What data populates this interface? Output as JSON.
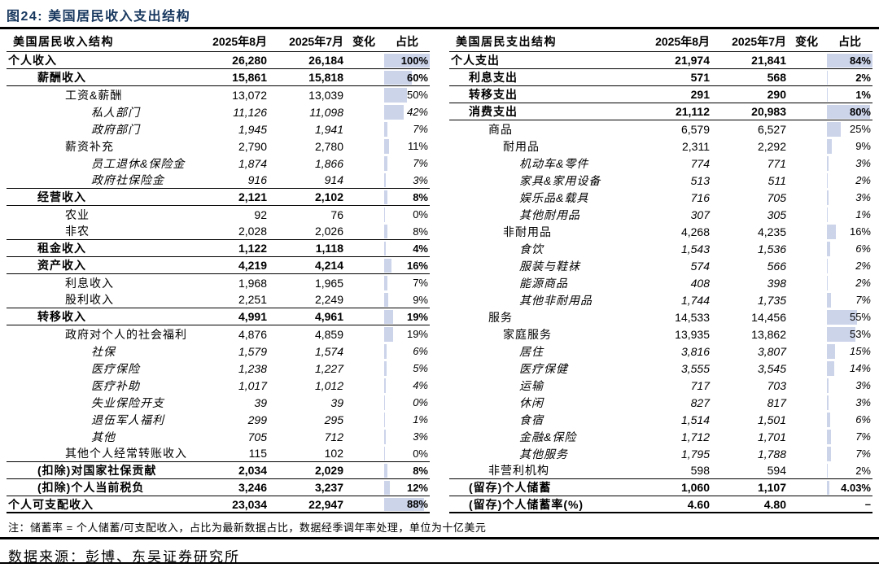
{
  "figure": {
    "title": "图24:  美国居民收入支出结构"
  },
  "note": "注：储蓄率 = 个人储蓄/可支配收入，占比为最新数据占比，数据经季调年率处理，单位为十亿美元",
  "source": "数据来源：彭博、东吴证券研究所",
  "colors": {
    "title_text": "#17375e",
    "share_bar_fill": "#ccd4ea",
    "rule": "#000000"
  },
  "tables": [
    {
      "name": "income-structure",
      "bar_max": 100,
      "header": {
        "label": "美国居民收入结构",
        "col_aug": "2025年8月",
        "col_jul": "2025年7月",
        "col_change": "变化",
        "col_share": "占比"
      },
      "rows": [
        {
          "label": "个人收入",
          "v1": "26,280",
          "v2": "26,184",
          "pct": "100%",
          "bar": 100,
          "ind": 0,
          "style": "b",
          "bb": 1
        },
        {
          "label": "薪酬收入",
          "v1": "15,861",
          "v2": "15,818",
          "pct": "60%",
          "bar": 60,
          "ind": 1,
          "style": "b",
          "bb": 1
        },
        {
          "label": "工资&薪酬",
          "v1": "13,072",
          "v2": "13,039",
          "pct": "50%",
          "bar": 50,
          "ind": 2,
          "style": "r",
          "bb": 0
        },
        {
          "label": "私人部门",
          "v1": "11,126",
          "v2": "11,098",
          "pct": "42%",
          "bar": 42,
          "ind": 3,
          "style": "i",
          "bb": 0
        },
        {
          "label": "政府部门",
          "v1": "1,945",
          "v2": "1,941",
          "pct": "7%",
          "bar": 7,
          "ind": 3,
          "style": "i",
          "bb": 0
        },
        {
          "label": "薪资补充",
          "v1": "2,790",
          "v2": "2,780",
          "pct": "11%",
          "bar": 11,
          "ind": 2,
          "style": "r",
          "bb": 0
        },
        {
          "label": "员工退休&保险金",
          "v1": "1,874",
          "v2": "1,866",
          "pct": "7%",
          "bar": 7,
          "ind": 3,
          "style": "i",
          "bb": 0
        },
        {
          "label": "政府社保险金",
          "v1": "916",
          "v2": "914",
          "pct": "3%",
          "bar": 3,
          "ind": 3,
          "style": "i",
          "bb": 1
        },
        {
          "label": "经营收入",
          "v1": "2,121",
          "v2": "2,102",
          "pct": "8%",
          "bar": 8,
          "ind": 1,
          "style": "b",
          "bb": 1
        },
        {
          "label": "农业",
          "v1": "92",
          "v2": "76",
          "pct": "0%",
          "bar": 0.5,
          "ind": 2,
          "style": "r",
          "bb": 0
        },
        {
          "label": "非农",
          "v1": "2,028",
          "v2": "2,026",
          "pct": "8%",
          "bar": 8,
          "ind": 2,
          "style": "r",
          "bb": 1
        },
        {
          "label": "租金收入",
          "v1": "1,122",
          "v2": "1,118",
          "pct": "4%",
          "bar": 4,
          "ind": 1,
          "style": "b",
          "bb": 1
        },
        {
          "label": "资产收入",
          "v1": "4,219",
          "v2": "4,214",
          "pct": "16%",
          "bar": 16,
          "ind": 1,
          "style": "b",
          "bb": 1
        },
        {
          "label": "利息收入",
          "v1": "1,968",
          "v2": "1,965",
          "pct": "7%",
          "bar": 7,
          "ind": 2,
          "style": "r",
          "bb": 0
        },
        {
          "label": "股利收入",
          "v1": "2,251",
          "v2": "2,249",
          "pct": "9%",
          "bar": 9,
          "ind": 2,
          "style": "r",
          "bb": 1
        },
        {
          "label": "转移收入",
          "v1": "4,991",
          "v2": "4,961",
          "pct": "19%",
          "bar": 19,
          "ind": 1,
          "style": "b",
          "bb": 1
        },
        {
          "label": "政府对个人的社会福利",
          "v1": "4,876",
          "v2": "4,859",
          "pct": "19%",
          "bar": 19,
          "ind": 2,
          "style": "r",
          "bb": 0
        },
        {
          "label": "社保",
          "v1": "1,579",
          "v2": "1,574",
          "pct": "6%",
          "bar": 6,
          "ind": 3,
          "style": "i",
          "bb": 0
        },
        {
          "label": "医疗保险",
          "v1": "1,238",
          "v2": "1,227",
          "pct": "5%",
          "bar": 5,
          "ind": 3,
          "style": "i",
          "bb": 0
        },
        {
          "label": "医疗补助",
          "v1": "1,017",
          "v2": "1,012",
          "pct": "4%",
          "bar": 4,
          "ind": 3,
          "style": "i",
          "bb": 0
        },
        {
          "label": "失业保险开支",
          "v1": "39",
          "v2": "39",
          "pct": "0%",
          "bar": 0.5,
          "ind": 3,
          "style": "i",
          "bb": 0
        },
        {
          "label": "退伍军人福利",
          "v1": "299",
          "v2": "295",
          "pct": "1%",
          "bar": 1,
          "ind": 3,
          "style": "i",
          "bb": 0
        },
        {
          "label": "其他",
          "v1": "705",
          "v2": "712",
          "pct": "3%",
          "bar": 3,
          "ind": 3,
          "style": "i",
          "bb": 0
        },
        {
          "label": "其他个人经常转账收入",
          "v1": "115",
          "v2": "102",
          "pct": "0%",
          "bar": 0.5,
          "ind": 2,
          "style": "r",
          "bb": 1
        },
        {
          "label": "(扣除)对国家社保贡献",
          "v1": "2,034",
          "v2": "2,029",
          "pct": "8%",
          "bar": 8,
          "ind": 1,
          "style": "b",
          "bb": 1
        },
        {
          "label": "(扣除)个人当前税负",
          "v1": "3,246",
          "v2": "3,237",
          "pct": "12%",
          "bar": 12,
          "ind": 1,
          "style": "b",
          "bb": 1
        },
        {
          "label": "个人可支配收入",
          "v1": "23,034",
          "v2": "22,947",
          "pct": "88%",
          "bar": 88,
          "ind": 0,
          "style": "b",
          "bb": 2
        }
      ]
    },
    {
      "name": "spending-structure",
      "bar_max": 84,
      "header": {
        "label": "美国居民支出结构",
        "col_aug": "2025年8月",
        "col_jul": "2025年7月",
        "col_change": "变化",
        "col_share": "占比"
      },
      "rows": [
        {
          "label": "个人支出",
          "v1": "21,974",
          "v2": "21,841",
          "pct": "84%",
          "bar": 84,
          "ind": 0,
          "style": "b",
          "bb": 1
        },
        {
          "label": "利息支出",
          "v1": "571",
          "v2": "568",
          "pct": "2%",
          "bar": 2,
          "ind": 1,
          "style": "b",
          "bb": 1
        },
        {
          "label": "转移支出",
          "v1": "291",
          "v2": "290",
          "pct": "1%",
          "bar": 1,
          "ind": 1,
          "style": "b",
          "bb": 1
        },
        {
          "label": "消费支出",
          "v1": "21,112",
          "v2": "20,983",
          "pct": "80%",
          "bar": 80,
          "ind": 1,
          "style": "b",
          "bb": 1
        },
        {
          "label": "商品",
          "v1": "6,579",
          "v2": "6,527",
          "pct": "25%",
          "bar": 25,
          "ind": 2,
          "style": "r",
          "bb": 0
        },
        {
          "label": "耐用品",
          "v1": "2,311",
          "v2": "2,292",
          "pct": "9%",
          "bar": 9,
          "ind": 3,
          "style": "r",
          "bb": 0
        },
        {
          "label": "机动车&零件",
          "v1": "774",
          "v2": "771",
          "pct": "3%",
          "bar": 3,
          "ind": 4,
          "style": "i",
          "bb": 0
        },
        {
          "label": "家具&家用设备",
          "v1": "513",
          "v2": "511",
          "pct": "2%",
          "bar": 2,
          "ind": 4,
          "style": "i",
          "bb": 0
        },
        {
          "label": "娱乐品&载具",
          "v1": "716",
          "v2": "705",
          "pct": "3%",
          "bar": 3,
          "ind": 4,
          "style": "i",
          "bb": 0
        },
        {
          "label": "其他耐用品",
          "v1": "307",
          "v2": "305",
          "pct": "1%",
          "bar": 1,
          "ind": 4,
          "style": "i",
          "bb": 0
        },
        {
          "label": "非耐用品",
          "v1": "4,268",
          "v2": "4,235",
          "pct": "16%",
          "bar": 16,
          "ind": 3,
          "style": "r",
          "bb": 0
        },
        {
          "label": "食饮",
          "v1": "1,543",
          "v2": "1,536",
          "pct": "6%",
          "bar": 6,
          "ind": 4,
          "style": "i",
          "bb": 0
        },
        {
          "label": "服装与鞋袜",
          "v1": "574",
          "v2": "566",
          "pct": "2%",
          "bar": 2,
          "ind": 4,
          "style": "i",
          "bb": 0
        },
        {
          "label": "能源商品",
          "v1": "408",
          "v2": "398",
          "pct": "2%",
          "bar": 2,
          "ind": 4,
          "style": "i",
          "bb": 0
        },
        {
          "label": "其他非耐用品",
          "v1": "1,744",
          "v2": "1,735",
          "pct": "7%",
          "bar": 7,
          "ind": 4,
          "style": "i",
          "bb": 0
        },
        {
          "label": "服务",
          "v1": "14,533",
          "v2": "14,456",
          "pct": "55%",
          "bar": 55,
          "ind": 2,
          "style": "r",
          "bb": 0
        },
        {
          "label": "家庭服务",
          "v1": "13,935",
          "v2": "13,862",
          "pct": "53%",
          "bar": 53,
          "ind": 3,
          "style": "r",
          "bb": 0
        },
        {
          "label": "居住",
          "v1": "3,816",
          "v2": "3,807",
          "pct": "15%",
          "bar": 15,
          "ind": 4,
          "style": "i",
          "bb": 0
        },
        {
          "label": "医疗保健",
          "v1": "3,555",
          "v2": "3,545",
          "pct": "14%",
          "bar": 14,
          "ind": 4,
          "style": "i",
          "bb": 0
        },
        {
          "label": "运输",
          "v1": "717",
          "v2": "703",
          "pct": "3%",
          "bar": 3,
          "ind": 4,
          "style": "i",
          "bb": 0
        },
        {
          "label": "休闲",
          "v1": "827",
          "v2": "817",
          "pct": "3%",
          "bar": 3,
          "ind": 4,
          "style": "i",
          "bb": 0
        },
        {
          "label": "食宿",
          "v1": "1,514",
          "v2": "1,501",
          "pct": "6%",
          "bar": 6,
          "ind": 4,
          "style": "i",
          "bb": 0
        },
        {
          "label": "金融&保险",
          "v1": "1,712",
          "v2": "1,701",
          "pct": "7%",
          "bar": 7,
          "ind": 4,
          "style": "i",
          "bb": 0
        },
        {
          "label": "其他服务",
          "v1": "1,795",
          "v2": "1,788",
          "pct": "7%",
          "bar": 7,
          "ind": 4,
          "style": "i",
          "bb": 0
        },
        {
          "label": "非营利机构",
          "v1": "598",
          "v2": "594",
          "pct": "2%",
          "bar": 2,
          "ind": 2,
          "style": "r",
          "bb": 1
        },
        {
          "label": "(留存)个人储蓄",
          "v1": "1,060",
          "v2": "1,107",
          "pct": "4.03%",
          "bar": 4.03,
          "ind": 1,
          "style": "b",
          "bb": 1
        },
        {
          "label": "(留存)个人储蓄率(%)",
          "v1": "4.60",
          "v2": "4.80",
          "pct": "–",
          "bar": 0,
          "ind": 1,
          "style": "b",
          "bb": 2
        }
      ]
    }
  ]
}
